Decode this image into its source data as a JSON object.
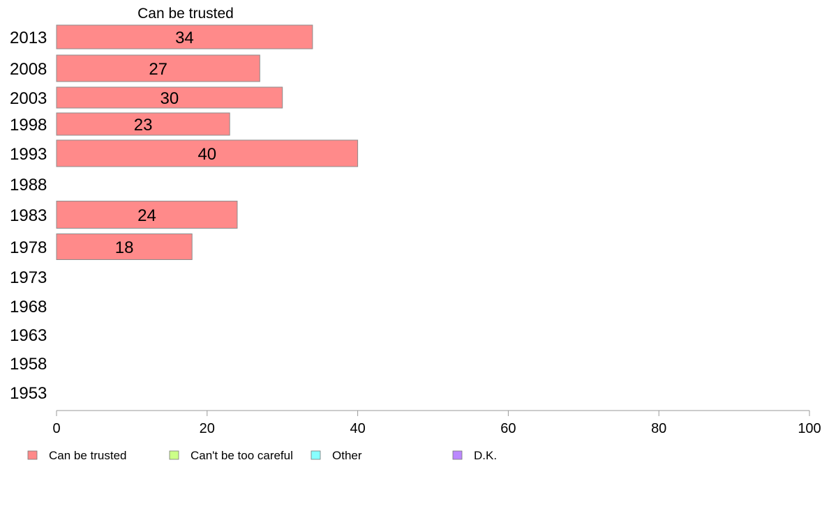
{
  "chart_data": {
    "type": "bar",
    "orientation": "horizontal",
    "title": "Can be trusted",
    "categories": [
      "2013",
      "2008",
      "2003",
      "1998",
      "1993",
      "1988",
      "1983",
      "1978",
      "1973",
      "1968",
      "1963",
      "1958",
      "1953"
    ],
    "series": [
      {
        "name": "Can be trusted",
        "color": "#ff8a8a",
        "values": [
          34,
          27,
          30,
          23,
          40,
          null,
          24,
          18,
          null,
          null,
          null,
          null,
          null
        ]
      }
    ],
    "xlim": [
      0,
      100
    ],
    "xticks": [
      "0",
      "20",
      "40",
      "60",
      "80",
      "100"
    ],
    "legend": {
      "placement": "bottom",
      "items": [
        {
          "label": "Can be trusted",
          "color": "#ff8a8a"
        },
        {
          "label": "Can't be too careful",
          "color": "#ccff88"
        },
        {
          "label": "Other",
          "color": "#88ffff"
        },
        {
          "label": "D.K.",
          "color": "#bb88ff"
        }
      ]
    },
    "grid": false
  }
}
